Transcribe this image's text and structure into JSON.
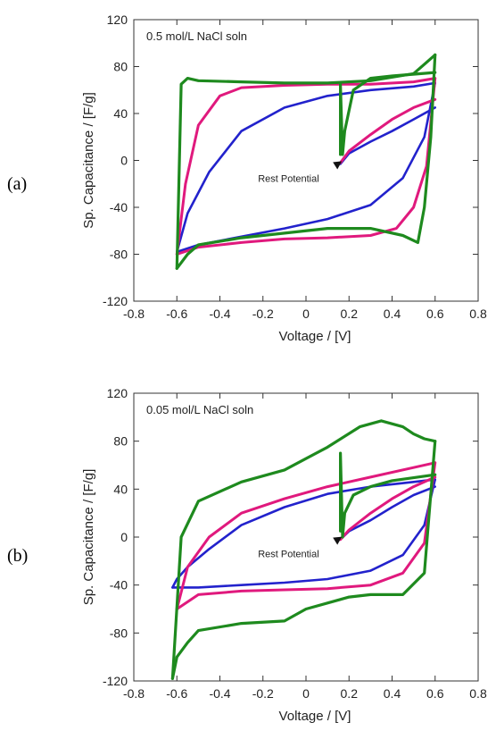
{
  "chart_data": [
    {
      "type": "line",
      "panel_label": "(a)",
      "title": "0.5 mol/L NaCl soln",
      "xlabel": "Voltage / [V]",
      "ylabel": "Sp. Capacitance / [F/g]",
      "xlim": [
        -0.8,
        0.8
      ],
      "ylim": [
        -120,
        120
      ],
      "xticks": [
        "-0.8",
        "-0.6",
        "-0.4",
        "-0.2",
        "0",
        "0.2",
        "0.4",
        "0.6",
        "0.8"
      ],
      "yticks": [
        "120",
        "80",
        "40",
        "0",
        "-40",
        "-80",
        "-120"
      ],
      "annotation": "Rest Potential",
      "rest_potential": {
        "x": 0.15,
        "y": -3
      },
      "series": [
        {
          "color": "#2222cc",
          "stroke": 2.6,
          "forward": [
            [
              -0.6,
              -78
            ],
            [
              -0.5,
              -72
            ],
            [
              -0.3,
              -65
            ],
            [
              -0.1,
              -58
            ],
            [
              0.1,
              -50
            ],
            [
              0.3,
              -38
            ],
            [
              0.45,
              -15
            ],
            [
              0.55,
              20
            ],
            [
              0.6,
              66
            ]
          ],
          "reverse": [
            [
              0.6,
              66
            ],
            [
              0.5,
              63
            ],
            [
              0.3,
              60
            ],
            [
              0.1,
              55
            ],
            [
              -0.1,
              45
            ],
            [
              -0.3,
              25
            ],
            [
              -0.45,
              -10
            ],
            [
              -0.55,
              -45
            ],
            [
              -0.6,
              -78
            ]
          ],
          "branch": [
            [
              0.6,
              45
            ],
            [
              0.5,
              35
            ],
            [
              0.4,
              25
            ],
            [
              0.3,
              16
            ],
            [
              0.2,
              6
            ],
            [
              0.16,
              -3
            ]
          ]
        },
        {
          "color": "#e0197d",
          "stroke": 3.0,
          "forward": [
            [
              -0.6,
              -80
            ],
            [
              -0.5,
              -74
            ],
            [
              -0.3,
              -70
            ],
            [
              -0.1,
              -67
            ],
            [
              0.1,
              -66
            ],
            [
              0.3,
              -64
            ],
            [
              0.42,
              -58
            ],
            [
              0.5,
              -40
            ],
            [
              0.56,
              -5
            ],
            [
              0.6,
              70
            ]
          ],
          "reverse": [
            [
              0.6,
              70
            ],
            [
              0.5,
              67
            ],
            [
              0.3,
              65
            ],
            [
              0.1,
              65
            ],
            [
              -0.1,
              64
            ],
            [
              -0.3,
              62
            ],
            [
              -0.4,
              55
            ],
            [
              -0.5,
              30
            ],
            [
              -0.56,
              -20
            ],
            [
              -0.6,
              -80
            ]
          ],
          "branch": [
            [
              0.6,
              52
            ],
            [
              0.5,
              45
            ],
            [
              0.4,
              35
            ],
            [
              0.3,
              22
            ],
            [
              0.2,
              8
            ],
            [
              0.16,
              -2
            ]
          ]
        },
        {
          "color": "#1e8a1e",
          "stroke": 3.2,
          "forward": [
            [
              -0.6,
              -92
            ],
            [
              -0.55,
              -80
            ],
            [
              -0.5,
              -72
            ],
            [
              -0.3,
              -66
            ],
            [
              -0.1,
              -62
            ],
            [
              0.1,
              -58
            ],
            [
              0.3,
              -58
            ],
            [
              0.45,
              -64
            ],
            [
              0.52,
              -70
            ],
            [
              0.55,
              -40
            ],
            [
              0.58,
              20
            ],
            [
              0.6,
              90
            ]
          ],
          "reverse": [
            [
              0.6,
              90
            ],
            [
              0.55,
              82
            ],
            [
              0.5,
              74
            ],
            [
              0.3,
              68
            ],
            [
              0.1,
              66
            ],
            [
              -0.1,
              66
            ],
            [
              -0.3,
              67
            ],
            [
              -0.5,
              68
            ],
            [
              -0.55,
              70
            ],
            [
              -0.58,
              65
            ],
            [
              -0.6,
              -92
            ]
          ],
          "branch": [
            [
              0.6,
              75
            ],
            [
              0.4,
              72
            ],
            [
              0.3,
              70
            ],
            [
              0.22,
              60
            ],
            [
              0.18,
              25
            ],
            [
              0.17,
              5
            ],
            [
              0.16,
              65
            ],
            [
              0.16,
              5
            ]
          ]
        }
      ]
    },
    {
      "type": "line",
      "panel_label": "(b)",
      "title": "0.05 mol/L NaCl soln",
      "xlabel": "Voltage / [V]",
      "ylabel": "Sp. Capacitance / [F/g]",
      "xlim": [
        -0.8,
        0.8
      ],
      "ylim": [
        -120,
        120
      ],
      "xticks": [
        "-0.8",
        "-0.6",
        "-0.4",
        "-0.2",
        "0",
        "0.2",
        "0.4",
        "0.6",
        "0.8"
      ],
      "yticks": [
        "120",
        "80",
        "40",
        "0",
        "-40",
        "-80",
        "-120"
      ],
      "annotation": "Rest Potential",
      "rest_potential": {
        "x": 0.15,
        "y": -2
      },
      "series": [
        {
          "color": "#2222cc",
          "stroke": 2.6,
          "forward": [
            [
              -0.62,
              -42
            ],
            [
              -0.5,
              -42
            ],
            [
              -0.3,
              -40
            ],
            [
              -0.1,
              -38
            ],
            [
              0.1,
              -35
            ],
            [
              0.3,
              -28
            ],
            [
              0.45,
              -15
            ],
            [
              0.55,
              10
            ],
            [
              0.6,
              48
            ]
          ],
          "reverse": [
            [
              0.6,
              48
            ],
            [
              0.5,
              46
            ],
            [
              0.3,
              42
            ],
            [
              0.1,
              36
            ],
            [
              -0.1,
              25
            ],
            [
              -0.3,
              10
            ],
            [
              -0.45,
              -10
            ],
            [
              -0.55,
              -25
            ],
            [
              -0.6,
              -35
            ],
            [
              -0.62,
              -42
            ]
          ],
          "branch": [
            [
              0.6,
              42
            ],
            [
              0.5,
              35
            ],
            [
              0.4,
              25
            ],
            [
              0.3,
              14
            ],
            [
              0.2,
              5
            ],
            [
              0.16,
              -2
            ]
          ]
        },
        {
          "color": "#e0197d",
          "stroke": 3.0,
          "forward": [
            [
              -0.6,
              -60
            ],
            [
              -0.5,
              -48
            ],
            [
              -0.3,
              -45
            ],
            [
              -0.1,
              -44
            ],
            [
              0.1,
              -43
            ],
            [
              0.3,
              -40
            ],
            [
              0.45,
              -30
            ],
            [
              0.55,
              -5
            ],
            [
              0.6,
              62
            ]
          ],
          "reverse": [
            [
              0.6,
              62
            ],
            [
              0.5,
              58
            ],
            [
              0.3,
              50
            ],
            [
              0.1,
              42
            ],
            [
              -0.1,
              32
            ],
            [
              -0.3,
              20
            ],
            [
              -0.45,
              0
            ],
            [
              -0.55,
              -25
            ],
            [
              -0.6,
              -60
            ]
          ],
          "branch": [
            [
              0.6,
              50
            ],
            [
              0.5,
              42
            ],
            [
              0.4,
              32
            ],
            [
              0.3,
              20
            ],
            [
              0.2,
              6
            ],
            [
              0.16,
              -2
            ]
          ]
        },
        {
          "color": "#1e8a1e",
          "stroke": 3.2,
          "forward": [
            [
              -0.62,
              -118
            ],
            [
              -0.6,
              -100
            ],
            [
              -0.55,
              -88
            ],
            [
              -0.5,
              -78
            ],
            [
              -0.3,
              -72
            ],
            [
              -0.1,
              -70
            ],
            [
              0.0,
              -60
            ],
            [
              0.1,
              -55
            ],
            [
              0.2,
              -50
            ],
            [
              0.3,
              -48
            ],
            [
              0.45,
              -48
            ],
            [
              0.55,
              -30
            ],
            [
              0.6,
              80
            ]
          ],
          "reverse": [
            [
              0.6,
              80
            ],
            [
              0.55,
              82
            ],
            [
              0.5,
              86
            ],
            [
              0.45,
              92
            ],
            [
              0.35,
              97
            ],
            [
              0.25,
              92
            ],
            [
              0.1,
              75
            ],
            [
              -0.1,
              56
            ],
            [
              -0.3,
              46
            ],
            [
              -0.5,
              30
            ],
            [
              -0.58,
              0
            ],
            [
              -0.62,
              -118
            ]
          ],
          "branch": [
            [
              0.6,
              52
            ],
            [
              0.4,
              47
            ],
            [
              0.3,
              42
            ],
            [
              0.22,
              35
            ],
            [
              0.18,
              20
            ],
            [
              0.17,
              0
            ],
            [
              0.16,
              70
            ],
            [
              0.16,
              5
            ]
          ]
        }
      ]
    }
  ]
}
